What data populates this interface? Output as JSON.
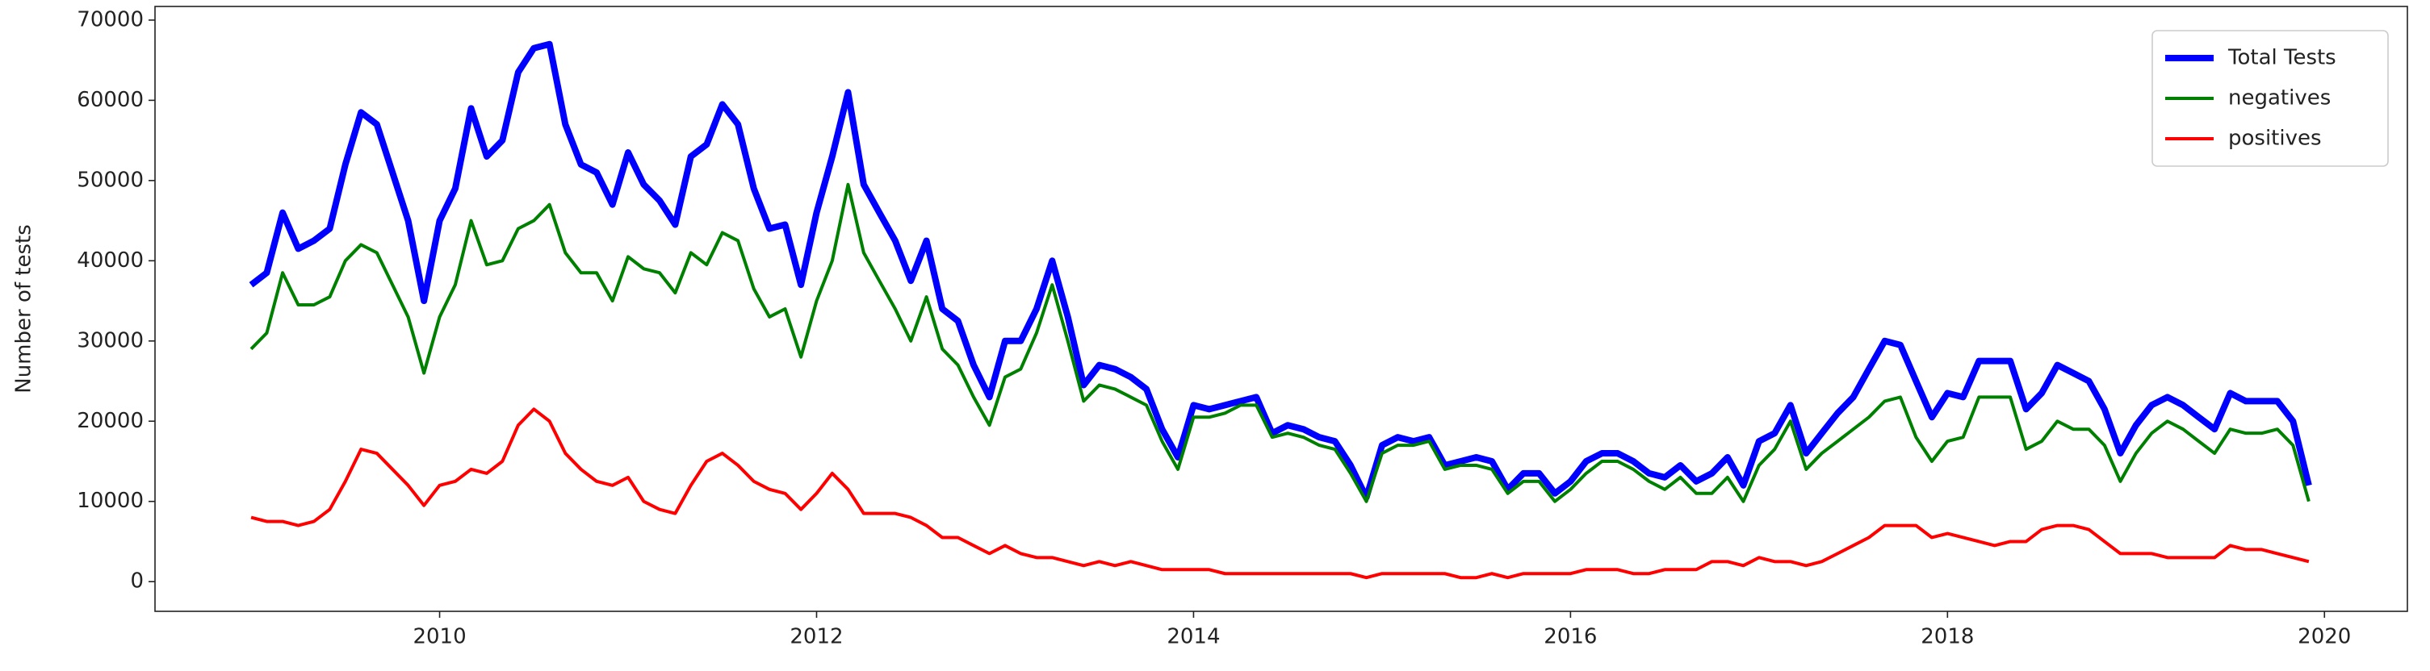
{
  "chart_data": {
    "type": "line",
    "ylabel": "Number of tests",
    "x": [
      2009,
      2009.083,
      2009.167,
      2009.25,
      2009.333,
      2009.417,
      2009.5,
      2009.583,
      2009.667,
      2009.75,
      2009.833,
      2009.917,
      2010,
      2010.083,
      2010.167,
      2010.25,
      2010.333,
      2010.417,
      2010.5,
      2010.583,
      2010.667,
      2010.75,
      2010.833,
      2010.917,
      2011,
      2011.083,
      2011.167,
      2011.25,
      2011.333,
      2011.417,
      2011.5,
      2011.583,
      2011.667,
      2011.75,
      2011.833,
      2011.917,
      2012,
      2012.083,
      2012.167,
      2012.25,
      2012.333,
      2012.417,
      2012.5,
      2012.583,
      2012.667,
      2012.75,
      2012.833,
      2012.917,
      2013,
      2013.083,
      2013.167,
      2013.25,
      2013.333,
      2013.417,
      2013.5,
      2013.583,
      2013.667,
      2013.75,
      2013.833,
      2013.917,
      2014,
      2014.083,
      2014.167,
      2014.25,
      2014.333,
      2014.417,
      2014.5,
      2014.583,
      2014.667,
      2014.75,
      2014.833,
      2014.917,
      2015,
      2015.083,
      2015.167,
      2015.25,
      2015.333,
      2015.417,
      2015.5,
      2015.583,
      2015.667,
      2015.75,
      2015.833,
      2015.917,
      2016,
      2016.083,
      2016.167,
      2016.25,
      2016.333,
      2016.417,
      2016.5,
      2016.583,
      2016.667,
      2016.75,
      2016.833,
      2016.917,
      2017,
      2017.083,
      2017.167,
      2017.25,
      2017.333,
      2017.417,
      2017.5,
      2017.583,
      2017.667,
      2017.75,
      2017.833,
      2017.917,
      2018,
      2018.083,
      2018.167,
      2018.25,
      2018.333,
      2018.417,
      2018.5,
      2018.583,
      2018.667,
      2018.75,
      2018.833,
      2018.917,
      2019,
      2019.083,
      2019.167,
      2019.25,
      2019.333,
      2019.417,
      2019.5,
      2019.583,
      2019.667,
      2019.75,
      2019.833,
      2019.917
    ],
    "series": [
      {
        "name": "Total Tests",
        "color": "#0000ff",
        "width": 8,
        "values": [
          37000,
          38500,
          46000,
          41500,
          42500,
          44000,
          52000,
          58500,
          57000,
          51000,
          45000,
          35000,
          45000,
          49000,
          59000,
          53000,
          55000,
          63500,
          66500,
          67000,
          57000,
          52000,
          51000,
          47000,
          53500,
          49500,
          47500,
          44500,
          53000,
          54500,
          59500,
          57000,
          49000,
          44000,
          44500,
          37000,
          46000,
          53000,
          61000,
          49500,
          46000,
          42500,
          37500,
          42500,
          34000,
          32500,
          27000,
          23000,
          30000,
          30000,
          34000,
          40000,
          33000,
          24500,
          27000,
          26500,
          25500,
          24000,
          19000,
          15500,
          22000,
          21500,
          22000,
          22500,
          23000,
          18500,
          19500,
          19000,
          18000,
          17500,
          14500,
          10500,
          17000,
          18000,
          17500,
          18000,
          14500,
          15000,
          15500,
          15000,
          11500,
          13500,
          13500,
          11000,
          12500,
          15000,
          16000,
          16000,
          15000,
          13500,
          13000,
          14500,
          12500,
          13500,
          15500,
          12000,
          17500,
          18500,
          22000,
          16000,
          18500,
          21000,
          23000,
          26500,
          30000,
          29500,
          25000,
          20500,
          23500,
          23000,
          27500,
          27500,
          27500,
          21500,
          23500,
          27000,
          26000,
          25000,
          21500,
          16000,
          19500,
          22000,
          23000,
          22000,
          20500,
          19000,
          23500,
          22500,
          22500,
          22500,
          20000,
          12000
        ]
      },
      {
        "name": "negatives",
        "color": "#008000",
        "width": 4,
        "values": [
          29000,
          31000,
          38500,
          34500,
          34500,
          35500,
          40000,
          42000,
          41000,
          37000,
          33000,
          26000,
          33000,
          37000,
          45000,
          39500,
          40000,
          44000,
          45000,
          47000,
          41000,
          38500,
          38500,
          35000,
          40500,
          39000,
          38500,
          36000,
          41000,
          39500,
          43500,
          42500,
          36500,
          33000,
          34000,
          28000,
          35000,
          40000,
          49500,
          41000,
          37500,
          34000,
          30000,
          35500,
          29000,
          27000,
          23000,
          19500,
          25500,
          26500,
          31000,
          37000,
          30000,
          22500,
          24500,
          24000,
          23000,
          22000,
          17500,
          14000,
          20500,
          20500,
          21000,
          22000,
          22000,
          18000,
          18500,
          18000,
          17000,
          16500,
          13500,
          10000,
          16000,
          17000,
          17000,
          17500,
          14000,
          14500,
          14500,
          14000,
          11000,
          12500,
          12500,
          10000,
          11500,
          13500,
          15000,
          15000,
          14000,
          12500,
          11500,
          13000,
          11000,
          11000,
          13000,
          10000,
          14500,
          16500,
          20000,
          14000,
          16000,
          17500,
          19000,
          20500,
          22500,
          23000,
          18000,
          15000,
          17500,
          18000,
          23000,
          23000,
          23000,
          16500,
          17500,
          20000,
          19000,
          19000,
          17000,
          12500,
          16000,
          18500,
          20000,
          19000,
          17500,
          16000,
          19000,
          18500,
          18500,
          19000,
          17000,
          10000
        ]
      },
      {
        "name": "positives",
        "color": "#ff0000",
        "width": 4,
        "values": [
          8000,
          7500,
          7500,
          7000,
          7500,
          9000,
          12500,
          16500,
          16000,
          14000,
          12000,
          9500,
          12000,
          12500,
          14000,
          13500,
          15000,
          19500,
          21500,
          20000,
          16000,
          14000,
          12500,
          12000,
          13000,
          10000,
          9000,
          8500,
          12000,
          15000,
          16000,
          14500,
          12500,
          11500,
          11000,
          9000,
          11000,
          13500,
          11500,
          8500,
          8500,
          8500,
          8000,
          7000,
          5500,
          5500,
          4500,
          3500,
          4500,
          3500,
          3000,
          3000,
          2500,
          2000,
          2500,
          2000,
          2500,
          2000,
          1500,
          1500,
          1500,
          1500,
          1000,
          1000,
          1000,
          1000,
          1000,
          1000,
          1000,
          1000,
          1000,
          500,
          1000,
          1000,
          1000,
          1000,
          1000,
          500,
          500,
          1000,
          500,
          1000,
          1000,
          1000,
          1000,
          1500,
          1500,
          1500,
          1000,
          1000,
          1500,
          1500,
          1500,
          2500,
          2500,
          2000,
          3000,
          2500,
          2500,
          2000,
          2500,
          3500,
          4500,
          5500,
          7000,
          7000,
          7000,
          5500,
          6000,
          5500,
          5000,
          4500,
          5000,
          5000,
          6500,
          7000,
          7000,
          6500,
          5000,
          3500,
          3500,
          3500,
          3000,
          3000,
          3000,
          3000,
          4500,
          4000,
          4000,
          3500,
          3000,
          2500
        ]
      }
    ],
    "xlim": [
      2008.49,
      2020.44
    ],
    "xticks": [
      2010,
      2012,
      2014,
      2016,
      2018,
      2020
    ],
    "ylim": [
      -3700,
      71700
    ],
    "yticks": [
      0,
      10000,
      20000,
      30000,
      40000,
      50000,
      60000,
      70000
    ],
    "grid": false,
    "legend": "upper right"
  }
}
